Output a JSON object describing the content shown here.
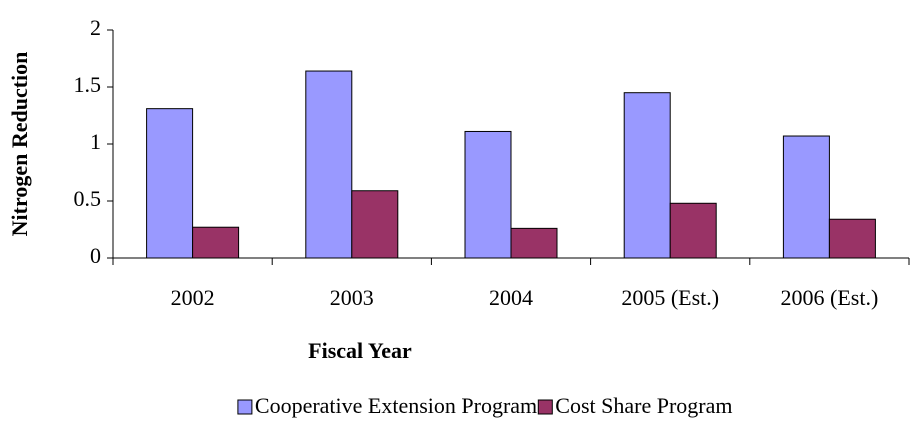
{
  "chart_data": {
    "type": "bar",
    "x_label": "Fiscal Year",
    "y_label": "Nitrogen Reduction",
    "categories": [
      "2002",
      "2003",
      "2004",
      "2005 (Est.)",
      "2006 (Est.)"
    ],
    "series": [
      {
        "name": "Cooperative Extension Program",
        "color": "#9999ff",
        "values": [
          1.31,
          1.64,
          1.11,
          1.45,
          1.07
        ]
      },
      {
        "name": "Cost Share Program",
        "color": "#993366",
        "values": [
          0.27,
          0.59,
          0.26,
          0.48,
          0.34
        ]
      }
    ],
    "ylim": [
      0,
      2
    ],
    "yticks": [
      0,
      0.5,
      1,
      1.5,
      2
    ],
    "grid": false,
    "legend": "bottom"
  }
}
